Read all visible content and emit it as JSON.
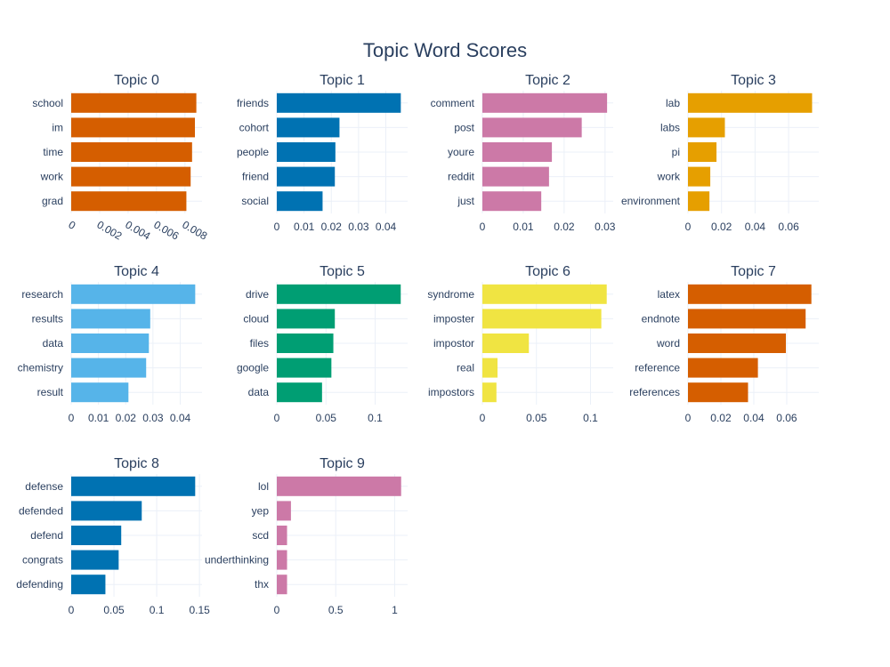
{
  "title": "Topic Word Scores",
  "chart_data": [
    {
      "type": "bar",
      "orientation": "horizontal",
      "title": "Topic 0",
      "color": "#D55E00",
      "categories": [
        "school",
        "im",
        "time",
        "work",
        "grad"
      ],
      "values": [
        0.0088,
        0.0087,
        0.0085,
        0.0084,
        0.0081
      ],
      "xlim": [
        0,
        0.0092
      ],
      "ticks": [
        {
          "v": 0,
          "label": "0"
        },
        {
          "v": 0.002,
          "label": "0.002"
        },
        {
          "v": 0.004,
          "label": "0.004"
        },
        {
          "v": 0.006,
          "label": "0.006"
        },
        {
          "v": 0.008,
          "label": "0.008"
        }
      ],
      "tick_rotation": 30
    },
    {
      "type": "bar",
      "orientation": "horizontal",
      "title": "Topic 1",
      "color": "#0072B2",
      "categories": [
        "friends",
        "cohort",
        "people",
        "friend",
        "social"
      ],
      "values": [
        0.0455,
        0.023,
        0.0215,
        0.0213,
        0.0168
      ],
      "xlim": [
        0,
        0.048
      ],
      "ticks": [
        {
          "v": 0,
          "label": "0"
        },
        {
          "v": 0.01,
          "label": "0.01"
        },
        {
          "v": 0.02,
          "label": "0.02"
        },
        {
          "v": 0.03,
          "label": "0.03"
        },
        {
          "v": 0.04,
          "label": "0.04"
        }
      ]
    },
    {
      "type": "bar",
      "orientation": "horizontal",
      "title": "Topic 2",
      "color": "#CC79A7",
      "categories": [
        "comment",
        "post",
        "youre",
        "reddit",
        "just"
      ],
      "values": [
        0.0305,
        0.0243,
        0.017,
        0.0163,
        0.0144
      ],
      "xlim": [
        0,
        0.032
      ],
      "ticks": [
        {
          "v": 0,
          "label": "0"
        },
        {
          "v": 0.01,
          "label": "0.01"
        },
        {
          "v": 0.02,
          "label": "0.02"
        },
        {
          "v": 0.03,
          "label": "0.03"
        }
      ]
    },
    {
      "type": "bar",
      "orientation": "horizontal",
      "title": "Topic 3",
      "color": "#E69F00",
      "categories": [
        "lab",
        "labs",
        "pi",
        "work",
        "environment"
      ],
      "values": [
        0.074,
        0.022,
        0.017,
        0.0133,
        0.0128
      ],
      "xlim": [
        0,
        0.078
      ],
      "ticks": [
        {
          "v": 0,
          "label": "0"
        },
        {
          "v": 0.02,
          "label": "0.02"
        },
        {
          "v": 0.04,
          "label": "0.04"
        },
        {
          "v": 0.06,
          "label": "0.06"
        }
      ]
    },
    {
      "type": "bar",
      "orientation": "horizontal",
      "title": "Topic 4",
      "color": "#56B4E9",
      "categories": [
        "research",
        "results",
        "data",
        "chemistry",
        "result"
      ],
      "values": [
        0.0455,
        0.029,
        0.0285,
        0.0275,
        0.021
      ],
      "xlim": [
        0,
        0.048
      ],
      "ticks": [
        {
          "v": 0,
          "label": "0"
        },
        {
          "v": 0.01,
          "label": "0.01"
        },
        {
          "v": 0.02,
          "label": "0.02"
        },
        {
          "v": 0.03,
          "label": "0.03"
        },
        {
          "v": 0.04,
          "label": "0.04"
        }
      ]
    },
    {
      "type": "bar",
      "orientation": "horizontal",
      "title": "Topic 5",
      "color": "#009E73",
      "categories": [
        "drive",
        "cloud",
        "files",
        "google",
        "data"
      ],
      "values": [
        0.126,
        0.059,
        0.0575,
        0.0555,
        0.046
      ],
      "xlim": [
        0,
        0.133
      ],
      "ticks": [
        {
          "v": 0,
          "label": "0"
        },
        {
          "v": 0.05,
          "label": "0.05"
        },
        {
          "v": 0.1,
          "label": "0.1"
        }
      ]
    },
    {
      "type": "bar",
      "orientation": "horizontal",
      "title": "Topic 6",
      "color": "#F0E442",
      "categories": [
        "syndrome",
        "imposter",
        "impostor",
        "real",
        "impostors"
      ],
      "values": [
        0.115,
        0.11,
        0.043,
        0.014,
        0.013
      ],
      "xlim": [
        0,
        0.121
      ],
      "ticks": [
        {
          "v": 0,
          "label": "0"
        },
        {
          "v": 0.05,
          "label": "0.05"
        },
        {
          "v": 0.1,
          "label": "0.1"
        }
      ]
    },
    {
      "type": "bar",
      "orientation": "horizontal",
      "title": "Topic 7",
      "color": "#D55E00",
      "categories": [
        "latex",
        "endnote",
        "word",
        "reference",
        "references"
      ],
      "values": [
        0.075,
        0.0715,
        0.0595,
        0.0425,
        0.0365
      ],
      "xlim": [
        0,
        0.0795
      ],
      "ticks": [
        {
          "v": 0,
          "label": "0"
        },
        {
          "v": 0.02,
          "label": "0.02"
        },
        {
          "v": 0.04,
          "label": "0.04"
        },
        {
          "v": 0.06,
          "label": "0.06"
        }
      ]
    },
    {
      "type": "bar",
      "orientation": "horizontal",
      "title": "Topic 8",
      "color": "#0072B2",
      "categories": [
        "defense",
        "defended",
        "defend",
        "congrats",
        "defending"
      ],
      "values": [
        0.145,
        0.0825,
        0.0585,
        0.0555,
        0.04
      ],
      "xlim": [
        0,
        0.153
      ],
      "ticks": [
        {
          "v": 0,
          "label": "0"
        },
        {
          "v": 0.05,
          "label": "0.05"
        },
        {
          "v": 0.1,
          "label": "0.1"
        },
        {
          "v": 0.15,
          "label": "0.15"
        }
      ]
    },
    {
      "type": "bar",
      "orientation": "horizontal",
      "title": "Topic 9",
      "color": "#CC79A7",
      "categories": [
        "lol",
        "yep",
        "scd",
        "underthinking",
        "thx"
      ],
      "values": [
        1.055,
        0.12,
        0.087,
        0.087,
        0.087
      ],
      "xlim": [
        0,
        1.11
      ],
      "ticks": [
        {
          "v": 0,
          "label": "0"
        },
        {
          "v": 0.5,
          "label": "0.5"
        },
        {
          "v": 1,
          "label": "1"
        }
      ]
    }
  ]
}
